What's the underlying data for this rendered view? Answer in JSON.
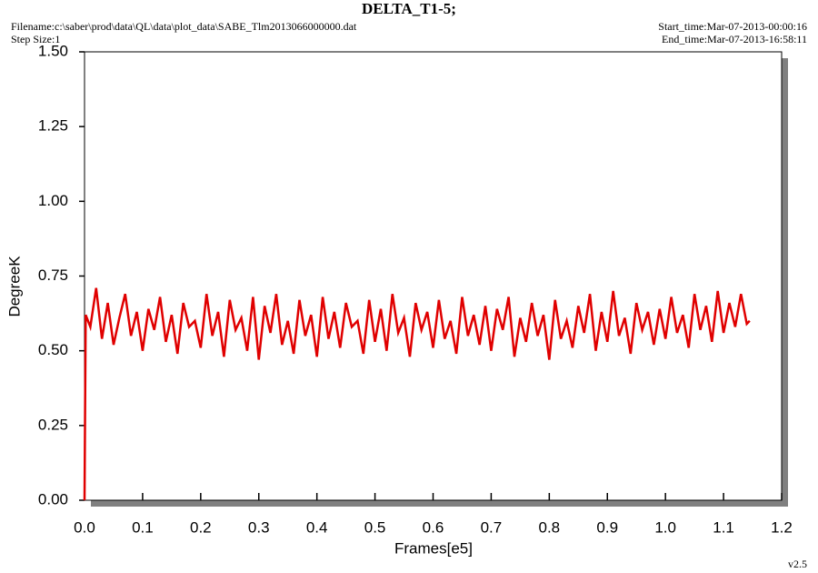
{
  "chart_data": {
    "type": "line",
    "title": "DELTA_T1-5;",
    "annotations": [
      "Filename:c:\\saber\\prod\\data\\QL\\data\\plot_data\\SABE_Tlm2013066000000.dat",
      "Step Size:1",
      "Start_time:Mar-07-2013-00:00:16",
      "End_time:Mar-07-2013-16:58:11",
      "v2.5"
    ],
    "x_label": "Frames[e5]",
    "y_label": "DegreeK",
    "color": "#e00000",
    "x": [
      0,
      0.002,
      0.01,
      0.02,
      0.03,
      0.04,
      0.05,
      0.06,
      0.07,
      0.08,
      0.09,
      0.1,
      0.11,
      0.12,
      0.13,
      0.14,
      0.15,
      0.16,
      0.17,
      0.18,
      0.19,
      0.2,
      0.21,
      0.22,
      0.23,
      0.24,
      0.25,
      0.26,
      0.27,
      0.28,
      0.29,
      0.3,
      0.31,
      0.32,
      0.33,
      0.34,
      0.35,
      0.36,
      0.37,
      0.38,
      0.39,
      0.4,
      0.41,
      0.42,
      0.43,
      0.44,
      0.45,
      0.46,
      0.47,
      0.48,
      0.49,
      0.5,
      0.51,
      0.52,
      0.53,
      0.54,
      0.55,
      0.56,
      0.57,
      0.58,
      0.59,
      0.6,
      0.61,
      0.62,
      0.63,
      0.64,
      0.65,
      0.66,
      0.67,
      0.68,
      0.69,
      0.7,
      0.71,
      0.72,
      0.73,
      0.74,
      0.75,
      0.76,
      0.77,
      0.78,
      0.79,
      0.8,
      0.81,
      0.82,
      0.83,
      0.84,
      0.85,
      0.86,
      0.87,
      0.88,
      0.89,
      0.9,
      0.91,
      0.92,
      0.93,
      0.94,
      0.95,
      0.96,
      0.97,
      0.98,
      0.99,
      1.0,
      1.01,
      1.02,
      1.03,
      1.04,
      1.05,
      1.06,
      1.07,
      1.08,
      1.09,
      1.1,
      1.11,
      1.12,
      1.13,
      1.14,
      1.145
    ],
    "values": [
      0.0,
      0.62,
      0.58,
      0.71,
      0.54,
      0.66,
      0.52,
      0.61,
      0.69,
      0.55,
      0.63,
      0.5,
      0.64,
      0.57,
      0.68,
      0.53,
      0.62,
      0.49,
      0.66,
      0.58,
      0.6,
      0.51,
      0.69,
      0.55,
      0.63,
      0.48,
      0.67,
      0.57,
      0.61,
      0.5,
      0.68,
      0.47,
      0.65,
      0.56,
      0.69,
      0.52,
      0.6,
      0.49,
      0.67,
      0.55,
      0.62,
      0.48,
      0.68,
      0.54,
      0.63,
      0.51,
      0.66,
      0.58,
      0.6,
      0.49,
      0.67,
      0.53,
      0.64,
      0.5,
      0.69,
      0.56,
      0.61,
      0.48,
      0.66,
      0.57,
      0.63,
      0.51,
      0.67,
      0.54,
      0.6,
      0.49,
      0.68,
      0.55,
      0.62,
      0.52,
      0.65,
      0.5,
      0.64,
      0.57,
      0.68,
      0.48,
      0.61,
      0.53,
      0.66,
      0.55,
      0.62,
      0.47,
      0.67,
      0.54,
      0.6,
      0.51,
      0.65,
      0.56,
      0.69,
      0.5,
      0.63,
      0.53,
      0.7,
      0.55,
      0.61,
      0.49,
      0.66,
      0.57,
      0.63,
      0.52,
      0.64,
      0.54,
      0.68,
      0.56,
      0.62,
      0.51,
      0.69,
      0.57,
      0.65,
      0.53,
      0.7,
      0.56,
      0.66,
      0.58,
      0.69,
      0.59,
      0.6
    ],
    "xlim": [
      0,
      1.2
    ],
    "xticks": [
      {
        "value": 0,
        "label": "0.0"
      },
      0.1,
      0.2,
      0.3,
      0.4,
      0.5,
      0.6,
      0.7,
      0.8,
      0.9,
      {
        "value": 1,
        "label": "1.0"
      },
      1.1,
      1.2
    ],
    "ylim": [
      0,
      1.5
    ],
    "yticks": [
      {
        "value": 0,
        "label": "0.00"
      },
      {
        "value": 0.25,
        "label": "0.25"
      },
      {
        "value": 0.5,
        "label": "0.50"
      },
      {
        "value": 0.75,
        "label": "0.75"
      },
      {
        "value": 1,
        "label": "1.00"
      },
      {
        "value": 1.25,
        "label": "1.25"
      },
      {
        "value": 1.5,
        "label": "1.50"
      }
    ],
    "grid": false
  }
}
